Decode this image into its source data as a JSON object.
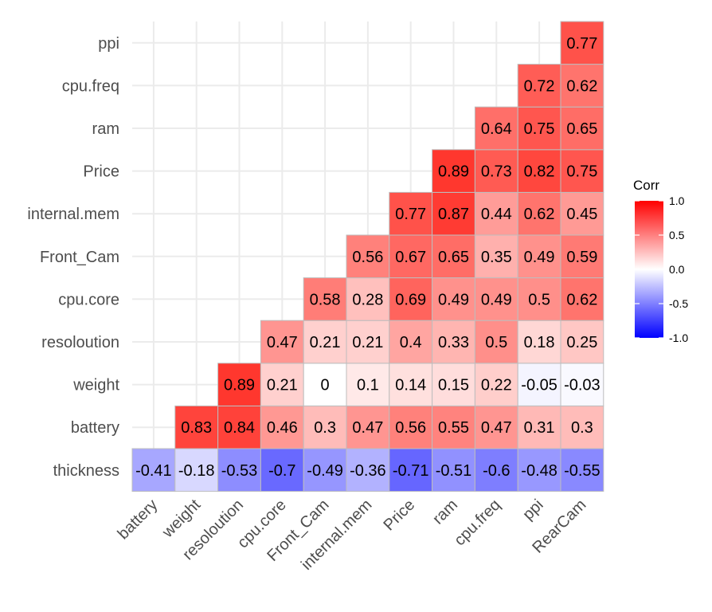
{
  "chart_data": {
    "type": "heatmap",
    "variables_x": [
      "battery",
      "weight",
      "resoloution",
      "cpu.core",
      "Front_Cam",
      "internal.mem",
      "Price",
      "ram",
      "cpu.freq",
      "ppi",
      "RearCam"
    ],
    "variables_y_bottom_to_top": [
      "thickness",
      "battery",
      "weight",
      "resoloution",
      "cpu.core",
      "Front_Cam",
      "internal.mem",
      "Price",
      "ram",
      "cpu.freq",
      "ppi"
    ],
    "matrix_rows_bottom_to_top": [
      [
        -0.41,
        -0.18,
        -0.53,
        -0.7,
        -0.49,
        -0.36,
        -0.71,
        -0.51,
        -0.6,
        -0.48,
        -0.55
      ],
      [
        null,
        0.83,
        0.84,
        0.46,
        0.3,
        0.47,
        0.56,
        0.55,
        0.47,
        0.31,
        0.3
      ],
      [
        null,
        null,
        0.89,
        0.21,
        0,
        0.1,
        0.14,
        0.15,
        0.22,
        -0.05,
        -0.03
      ],
      [
        null,
        null,
        null,
        0.47,
        0.21,
        0.21,
        0.4,
        0.33,
        0.5,
        0.18,
        0.25
      ],
      [
        null,
        null,
        null,
        null,
        0.58,
        0.28,
        0.69,
        0.49,
        0.49,
        0.5,
        0.62
      ],
      [
        null,
        null,
        null,
        null,
        null,
        0.56,
        0.67,
        0.65,
        0.35,
        0.49,
        0.59
      ],
      [
        null,
        null,
        null,
        null,
        null,
        null,
        0.77,
        0.87,
        0.44,
        0.62,
        0.45
      ],
      [
        null,
        null,
        null,
        null,
        null,
        null,
        null,
        0.89,
        0.73,
        0.82,
        0.75
      ],
      [
        null,
        null,
        null,
        null,
        null,
        null,
        null,
        null,
        0.64,
        0.75,
        0.65
      ],
      [
        null,
        null,
        null,
        null,
        null,
        null,
        null,
        null,
        null,
        0.72,
        0.62
      ],
      [
        null,
        null,
        null,
        null,
        null,
        null,
        null,
        null,
        null,
        null,
        0.77
      ]
    ],
    "legend": {
      "title": "Corr",
      "ticks": [
        "1.0",
        "0.5",
        "0.0",
        "-0.5",
        "-1.0"
      ],
      "range": [
        -1,
        1
      ],
      "colors": {
        "low": "#0000ff",
        "mid": "#ffffff",
        "high": "#ff0000"
      }
    },
    "grid": true,
    "legend_position": "right"
  }
}
